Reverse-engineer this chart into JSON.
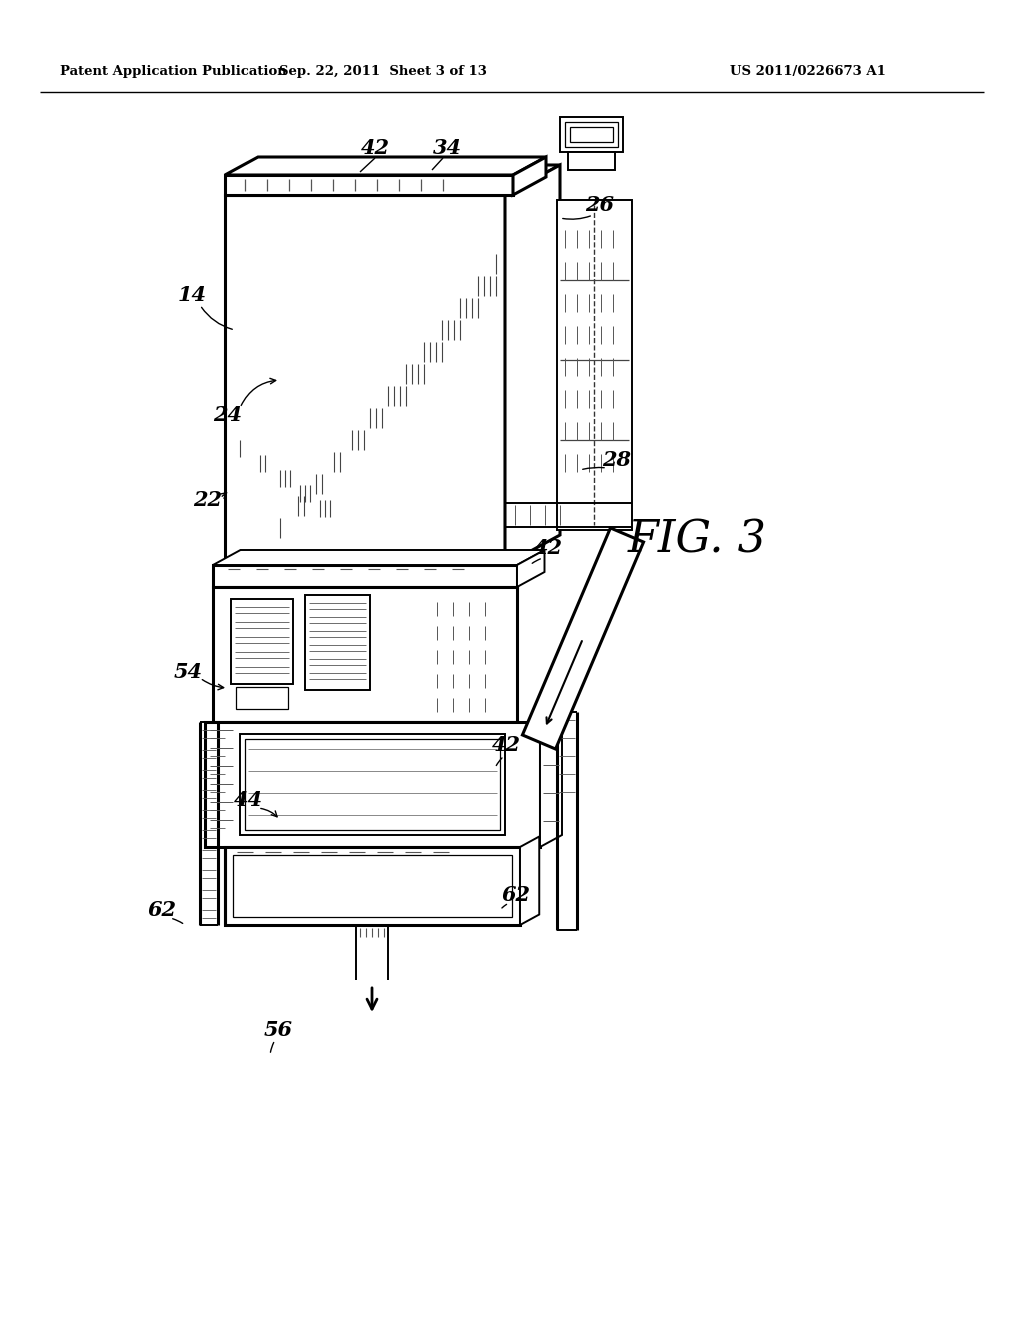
{
  "background_color": "#ffffff",
  "header_left": "Patent Application Publication",
  "header_center": "Sep. 22, 2011  Sheet 3 of 13",
  "header_right": "US 2011/0226673 A1",
  "fig_label": "FIG. 3",
  "line_color": "#000000",
  "hatch_color": "#555555",
  "light_hatch": "#999999"
}
